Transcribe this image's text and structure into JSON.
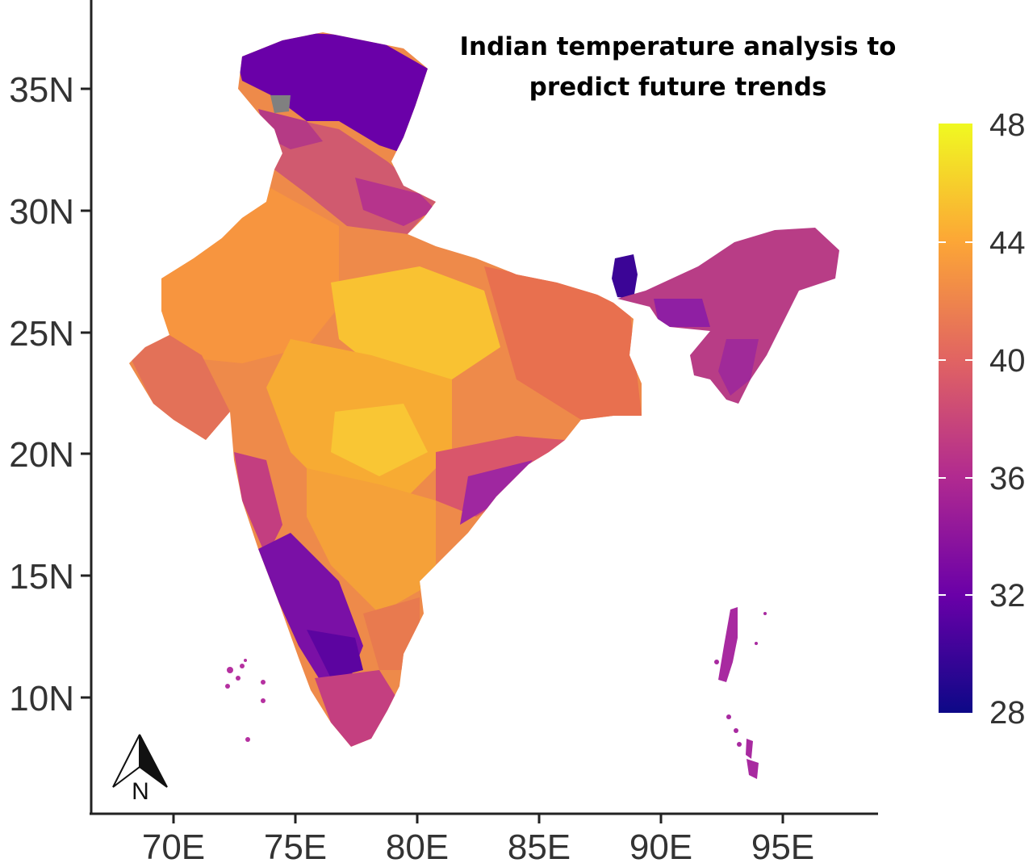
{
  "title": [
    "Indian temperature analysis to",
    "predict future trends"
  ],
  "colors": {
    "c28": "#0d0887",
    "c32": "#6a00a8",
    "c36": "#b12a90",
    "c40": "#e16462",
    "c44": "#fca636",
    "c48": "#f0f921",
    "nodata": "#808080"
  },
  "scale": {
    "type": "continuous",
    "palette": "plasma",
    "ticks": [
      48,
      44,
      40,
      36,
      32,
      28
    ],
    "range": [
      28,
      48
    ]
  },
  "axes": {
    "x_ticks": [
      "70E",
      "75E",
      "80E",
      "85E",
      "90E",
      "95E"
    ],
    "y_ticks": [
      "35N",
      "30N",
      "25N",
      "20N",
      "15N",
      "10N"
    ]
  },
  "north_arrow": {
    "label": "N"
  }
}
